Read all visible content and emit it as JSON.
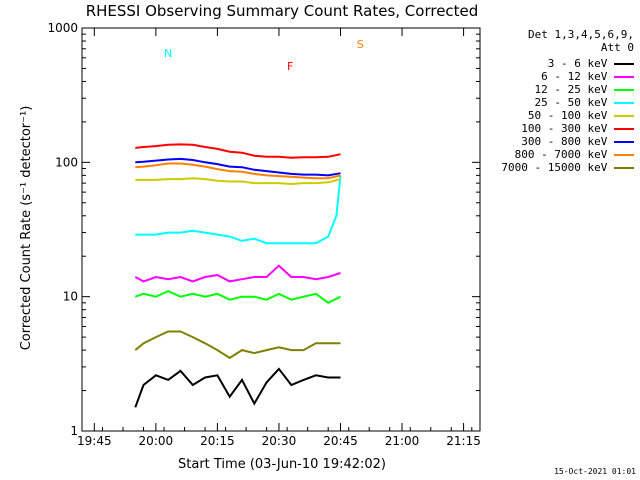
{
  "chart_data": {
    "type": "line",
    "title": "RHESSI Observing Summary Count Rates, Corrected",
    "xlabel": "Start Time (03-Jun-10 19:42:02)",
    "ylabel": "Corrected Count Rate (s⁻¹ detector⁻¹)",
    "yscale": "log",
    "ylim": [
      1,
      1000
    ],
    "xlim_minutes": [
      0,
      97
    ],
    "x_ticks": [
      "19:45",
      "20:00",
      "20:15",
      "20:30",
      "20:45",
      "21:00",
      "21:15"
    ],
    "x_tick_minutes": [
      3,
      18,
      33,
      48,
      63,
      78,
      93
    ],
    "y_ticks": [
      "1",
      "10",
      "100",
      "1000"
    ],
    "y_tick_values": [
      1,
      10,
      100,
      1000
    ],
    "legend_header": [
      "Det 1,3,4,5,6,9,",
      "Att 0"
    ],
    "legend_position": "right",
    "flags": {
      "labels": [
        {
          "text": "N",
          "minute": 19,
          "value": 650,
          "color": "#00ffff"
        },
        {
          "text": "F",
          "minute": 49,
          "value": 520,
          "color": "#ff0000"
        },
        {
          "text": "S",
          "minute": 66,
          "value": 760,
          "color": "#ff8000"
        }
      ]
    },
    "series": [
      {
        "name": "3 - 6 keV",
        "color": "#000000",
        "x": [
          13,
          15,
          18,
          21,
          24,
          27,
          30,
          33,
          36,
          39,
          42,
          45,
          48,
          51,
          54,
          57,
          60,
          63
        ],
        "values": [
          1.5,
          2.2,
          2.6,
          2.4,
          2.8,
          2.2,
          2.5,
          2.6,
          1.8,
          2.4,
          1.6,
          2.3,
          2.9,
          2.2,
          2.4,
          2.6,
          2.5,
          2.5
        ]
      },
      {
        "name": "6 - 12 keV",
        "color": "#ff00ff",
        "x": [
          13,
          15,
          18,
          21,
          24,
          27,
          30,
          33,
          36,
          39,
          42,
          45,
          48,
          51,
          54,
          57,
          60,
          63
        ],
        "values": [
          14,
          13,
          14,
          13.5,
          14,
          13,
          14,
          14.5,
          13,
          13.5,
          14,
          14,
          17,
          14,
          14,
          13.5,
          14,
          15
        ]
      },
      {
        "name": "12 - 25 keV",
        "color": "#00ff00",
        "x": [
          13,
          15,
          18,
          21,
          24,
          27,
          30,
          33,
          36,
          39,
          42,
          45,
          48,
          51,
          54,
          57,
          60,
          63
        ],
        "values": [
          10,
          10.5,
          10,
          11,
          10,
          10.5,
          10,
          10.5,
          9.5,
          10,
          10,
          9.5,
          10.5,
          9.5,
          10,
          10.5,
          9,
          10
        ]
      },
      {
        "name": "25 - 50 keV",
        "color": "#00ffff",
        "x": [
          13,
          15,
          18,
          21,
          24,
          27,
          30,
          33,
          36,
          39,
          42,
          45,
          48,
          51,
          54,
          57,
          60,
          62,
          63
        ],
        "values": [
          29,
          29,
          29,
          30,
          30,
          31,
          30,
          29,
          28,
          26,
          27,
          25,
          25,
          25,
          25,
          25,
          28,
          40,
          80
        ]
      },
      {
        "name": "50 - 100 keV",
        "color": "#cccc00",
        "x": [
          13,
          15,
          18,
          21,
          24,
          27,
          30,
          33,
          36,
          39,
          42,
          45,
          48,
          51,
          54,
          57,
          60,
          63
        ],
        "values": [
          74,
          74,
          74,
          75,
          75,
          76,
          75,
          73,
          72,
          72,
          70,
          70,
          70,
          69,
          70,
          70,
          71,
          75
        ]
      },
      {
        "name": "100 - 300 keV",
        "color": "#ff0000",
        "x": [
          13,
          15,
          18,
          21,
          24,
          27,
          30,
          33,
          36,
          39,
          42,
          45,
          48,
          51,
          54,
          57,
          60,
          63
        ],
        "values": [
          128,
          130,
          132,
          135,
          136,
          135,
          130,
          126,
          120,
          118,
          112,
          110,
          110,
          108,
          109,
          109,
          110,
          115
        ]
      },
      {
        "name": "300 - 800 keV",
        "color": "#0000ff",
        "x": [
          13,
          15,
          18,
          21,
          24,
          27,
          30,
          33,
          36,
          39,
          42,
          45,
          48,
          51,
          54,
          57,
          60,
          63
        ],
        "values": [
          100,
          101,
          103,
          105,
          106,
          104,
          100,
          97,
          93,
          92,
          88,
          86,
          84,
          82,
          81,
          81,
          80,
          83
        ]
      },
      {
        "name": "800 - 7000 keV",
        "color": "#ff8000",
        "x": [
          13,
          15,
          18,
          21,
          24,
          27,
          30,
          33,
          36,
          39,
          42,
          45,
          48,
          51,
          54,
          57,
          60,
          63
        ],
        "values": [
          92,
          93,
          95,
          98,
          98,
          96,
          93,
          89,
          86,
          85,
          82,
          80,
          79,
          78,
          77,
          76,
          76,
          80
        ]
      },
      {
        "name": "7000 - 15000 keV",
        "color": "#808000",
        "x": [
          13,
          15,
          18,
          21,
          24,
          27,
          30,
          33,
          36,
          39,
          42,
          45,
          48,
          51,
          54,
          57,
          60,
          63
        ],
        "values": [
          4,
          4.5,
          5,
          5.5,
          5.5,
          5,
          4.5,
          4,
          3.5,
          4,
          3.8,
          4,
          4.2,
          4,
          4,
          4.5,
          4.5,
          4.5
        ]
      }
    ]
  },
  "footer": {
    "timestamp": "15-Oct-2021 01:01"
  }
}
